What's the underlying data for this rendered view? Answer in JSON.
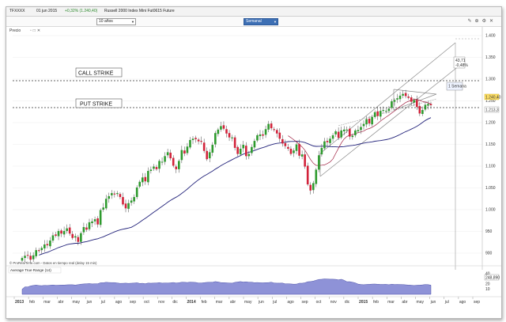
{
  "infobar": {
    "symbol": "TFXXXX",
    "date": "01 jun 2015",
    "change": "+0,32% (1.240,40)",
    "instrument": "Russell 2000 Index Mini Fut0615 Future"
  },
  "toolbar": {
    "period": "10 años",
    "interval": "Semanal"
  },
  "panels": {
    "price_label": "Precio",
    "atr_label": "Average True Range (14)",
    "watermark": "© ProRealTime.com - Datos en tiempo real (delay 15 min)"
  },
  "annotations": {
    "call_strike": "CALL STRIKE",
    "put_strike": "PUT STRIKE",
    "target_box_1": "43,71",
    "target_box_2": "-0,48%",
    "target_box_3": "1 Semana",
    "last_price": "1.240,40",
    "put_level": "1.213,3",
    "atr_value": "248,890"
  },
  "colors": {
    "up": "#2e9a2e",
    "down": "#d2223a",
    "ma_slow": "#22227a",
    "ma_fast": "#a02040",
    "last_price_tag": "#ffe066",
    "atr_fill": "#7a7fd0"
  },
  "chart_data": {
    "type": "candlestick",
    "price_axis": {
      "ticks": [
        "1.400",
        "1.350",
        "1.300",
        "1.250",
        "1.200",
        "1.150",
        "1.100",
        "1.050",
        "1.000",
        "950",
        "900"
      ],
      "range": [
        880,
        1420
      ]
    },
    "atr_axis": {
      "ticks": [
        "40",
        "30",
        "20",
        "10"
      ]
    },
    "time_axis": {
      "labels": [
        "2013",
        "feb",
        "mar",
        "abr",
        "may",
        "jun",
        "jul",
        "ago",
        "sep",
        "oct",
        "nov",
        "dic",
        "2014",
        "feb",
        "mar",
        "abr",
        "may",
        "jun",
        "jul",
        "ago",
        "sep",
        "oct",
        "nov",
        "dic",
        "2015",
        "feb",
        "mar",
        "abr",
        "may",
        "jun",
        "jul",
        "ago",
        "sep"
      ]
    },
    "levels": {
      "call_strike": 1285,
      "put_strike": 1210
    },
    "closes": [
      889,
      894,
      895,
      885,
      895,
      907,
      905,
      912,
      920,
      918,
      929,
      941,
      940,
      951,
      945,
      951,
      957,
      945,
      935,
      939,
      926,
      946,
      960,
      954,
      971,
      973,
      978,
      966,
      999,
      1005,
      1025,
      1031,
      1038,
      1035,
      1038,
      1029,
      1012,
      1003,
      1015,
      1021,
      1029,
      1051,
      1064,
      1074,
      1065,
      1089,
      1092,
      1099,
      1093,
      1112,
      1110,
      1123,
      1132,
      1118,
      1101,
      1093,
      1112,
      1137,
      1129,
      1145,
      1160,
      1163,
      1162,
      1157,
      1156,
      1135,
      1116,
      1132,
      1149,
      1176,
      1184,
      1192,
      1186,
      1175,
      1166,
      1166,
      1142,
      1128,
      1140,
      1149,
      1123,
      1128,
      1144,
      1158,
      1171,
      1173,
      1170,
      1185,
      1197,
      1187,
      1183,
      1175,
      1163,
      1152,
      1146,
      1140,
      1128,
      1136,
      1150,
      1124,
      1127,
      1099,
      1058,
      1044,
      1061,
      1092,
      1125,
      1142,
      1157,
      1155,
      1163,
      1171,
      1180,
      1165,
      1182,
      1184,
      1184,
      1168,
      1170,
      1182,
      1183,
      1190,
      1197,
      1208,
      1198,
      1213,
      1224,
      1215,
      1227,
      1229,
      1227,
      1232,
      1249,
      1252,
      1256,
      1262,
      1266,
      1261,
      1257,
      1248,
      1252,
      1236,
      1221,
      1229,
      1241,
      1243,
      1240
    ]
  }
}
